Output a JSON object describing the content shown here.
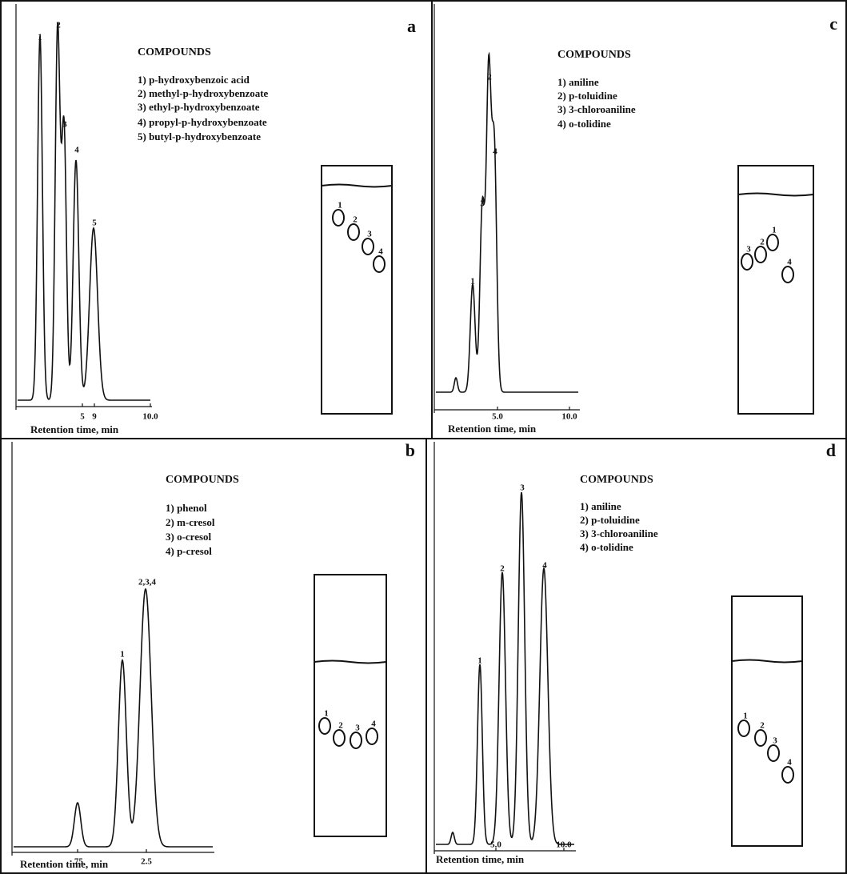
{
  "panels": [
    {
      "letter": "a",
      "heading": "COMPOUNDS",
      "compounds": [
        "1) p-hydroxybenzoic acid",
        "2) methyl-p-hydroxybenzoate",
        "3) ethyl-p-hydroxybenzoate",
        "4) propyl-p-hydroxybenzoate",
        "5) butyl-p-hydroxybenzoate"
      ],
      "peak_labels": [
        "1",
        "2",
        "3",
        "4",
        "5"
      ],
      "ticks": [
        "5",
        "9",
        "10.0"
      ],
      "axis_title": "Retention time, min",
      "spot_labels": [
        "1",
        "2",
        "3",
        "4"
      ]
    },
    {
      "letter": "c",
      "heading": "COMPOUNDS",
      "compounds": [
        "1) aniline",
        "2) p-toluidine",
        "3) 3-chloroaniline",
        "4) o-tolidine"
      ],
      "peak_labels": [
        "1",
        "2",
        "3",
        "4"
      ],
      "ticks": [
        "5.0",
        "10.0"
      ],
      "axis_title": "Retention time, min",
      "spot_labels": [
        "3",
        "2",
        "1",
        "4"
      ]
    },
    {
      "letter": "b",
      "heading": "COMPOUNDS",
      "compounds": [
        "1) phenol",
        "2) m-cresol",
        "3) o-cresol",
        "4) p-cresol"
      ],
      "peak_labels": [
        "1",
        "2,3,4"
      ],
      "ticks": [
        ".75",
        "2.5"
      ],
      "axis_title": "Retention time, min",
      "spot_labels": [
        "1",
        "2",
        "3",
        "4"
      ]
    },
    {
      "letter": "d",
      "heading": "COMPOUNDS",
      "compounds": [
        "1) aniline",
        "2) p-toluidine",
        "3) 3-chloroaniline",
        "4) o-tolidine"
      ],
      "peak_labels": [
        "1",
        "2",
        "3",
        "4"
      ],
      "ticks": [
        "5.0",
        "10.0"
      ],
      "axis_title": "Retention time, min",
      "spot_labels": [
        "1",
        "2",
        "3",
        "4"
      ]
    }
  ]
}
